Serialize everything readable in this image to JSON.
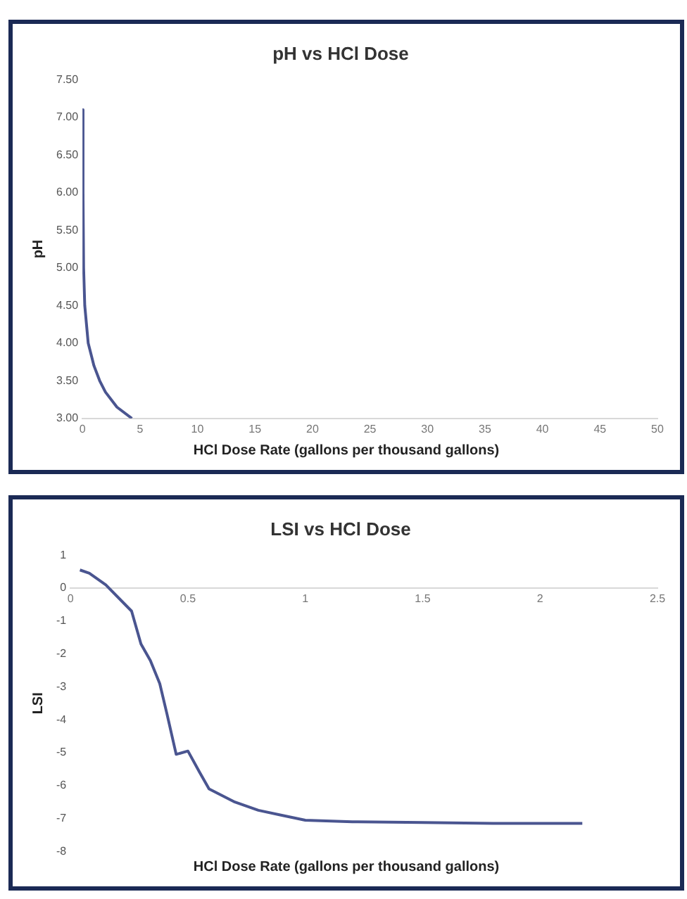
{
  "chart_data": [
    {
      "type": "line",
      "title": "pH vs HCl Dose",
      "xlabel": "HCl Dose Rate (gallons per thousand gallons)",
      "ylabel": "pH",
      "series": [
        {
          "color": "#4a5590",
          "x": [
            0,
            0.05,
            0.1,
            0.2,
            0.5,
            1,
            1.5,
            2,
            3,
            4.3
          ],
          "values": [
            7.1,
            6.0,
            5.0,
            4.5,
            4.0,
            3.7,
            3.5,
            3.35,
            3.15,
            3.0
          ]
        }
      ],
      "xlim": [
        0,
        50
      ],
      "xticks": [
        0,
        5,
        10,
        15,
        20,
        25,
        30,
        35,
        40,
        45,
        50
      ],
      "ylim": [
        3,
        7.5
      ],
      "yticks": [
        {
          "value": 3,
          "label": "3.00"
        },
        {
          "value": 3.5,
          "label": "3.50"
        },
        {
          "value": 4,
          "label": "4.00"
        },
        {
          "value": 4.5,
          "label": "4.50"
        },
        {
          "value": 5,
          "label": "5.00"
        },
        {
          "value": 5.5,
          "label": "5.50"
        },
        {
          "value": 6,
          "label": "6.00"
        },
        {
          "value": 6.5,
          "label": "6.50"
        },
        {
          "value": 7,
          "label": "7.00"
        },
        {
          "value": 7.5,
          "label": "7.50"
        }
      ],
      "grid": false,
      "legend": false,
      "marker": "none",
      "line_style": "solid"
    },
    {
      "type": "line",
      "title": "LSI vs HCl Dose",
      "xlabel": "HCl Dose Rate (gallons per thousand gallons)",
      "ylabel": "LSI",
      "series": [
        {
          "color": "#4a5590",
          "x": [
            0.04,
            0.08,
            0.15,
            0.26,
            0.3,
            0.34,
            0.38,
            0.41,
            0.45,
            0.5,
            0.55,
            0.59,
            0.7,
            0.8,
            0.9,
            1.0,
            1.2,
            1.5,
            1.8,
            2.0,
            2.18
          ],
          "values": [
            0.55,
            0.45,
            0.1,
            -0.7,
            -1.7,
            -2.2,
            -2.9,
            -3.8,
            -5.05,
            -4.95,
            -5.6,
            -6.1,
            -6.5,
            -6.75,
            -6.9,
            -7.05,
            -7.1,
            -7.12,
            -7.15,
            -7.15,
            -7.15
          ]
        }
      ],
      "xlim": [
        0,
        2.5
      ],
      "xticks": [
        0,
        0.5,
        1,
        1.5,
        2,
        2.5
      ],
      "ylim": [
        -8,
        1
      ],
      "yticks": [
        -8,
        -7,
        -6,
        -5,
        -4,
        -3,
        -2,
        -1,
        0,
        1
      ],
      "grid": false,
      "legend": false,
      "marker": "none",
      "line_style": "solid"
    }
  ]
}
